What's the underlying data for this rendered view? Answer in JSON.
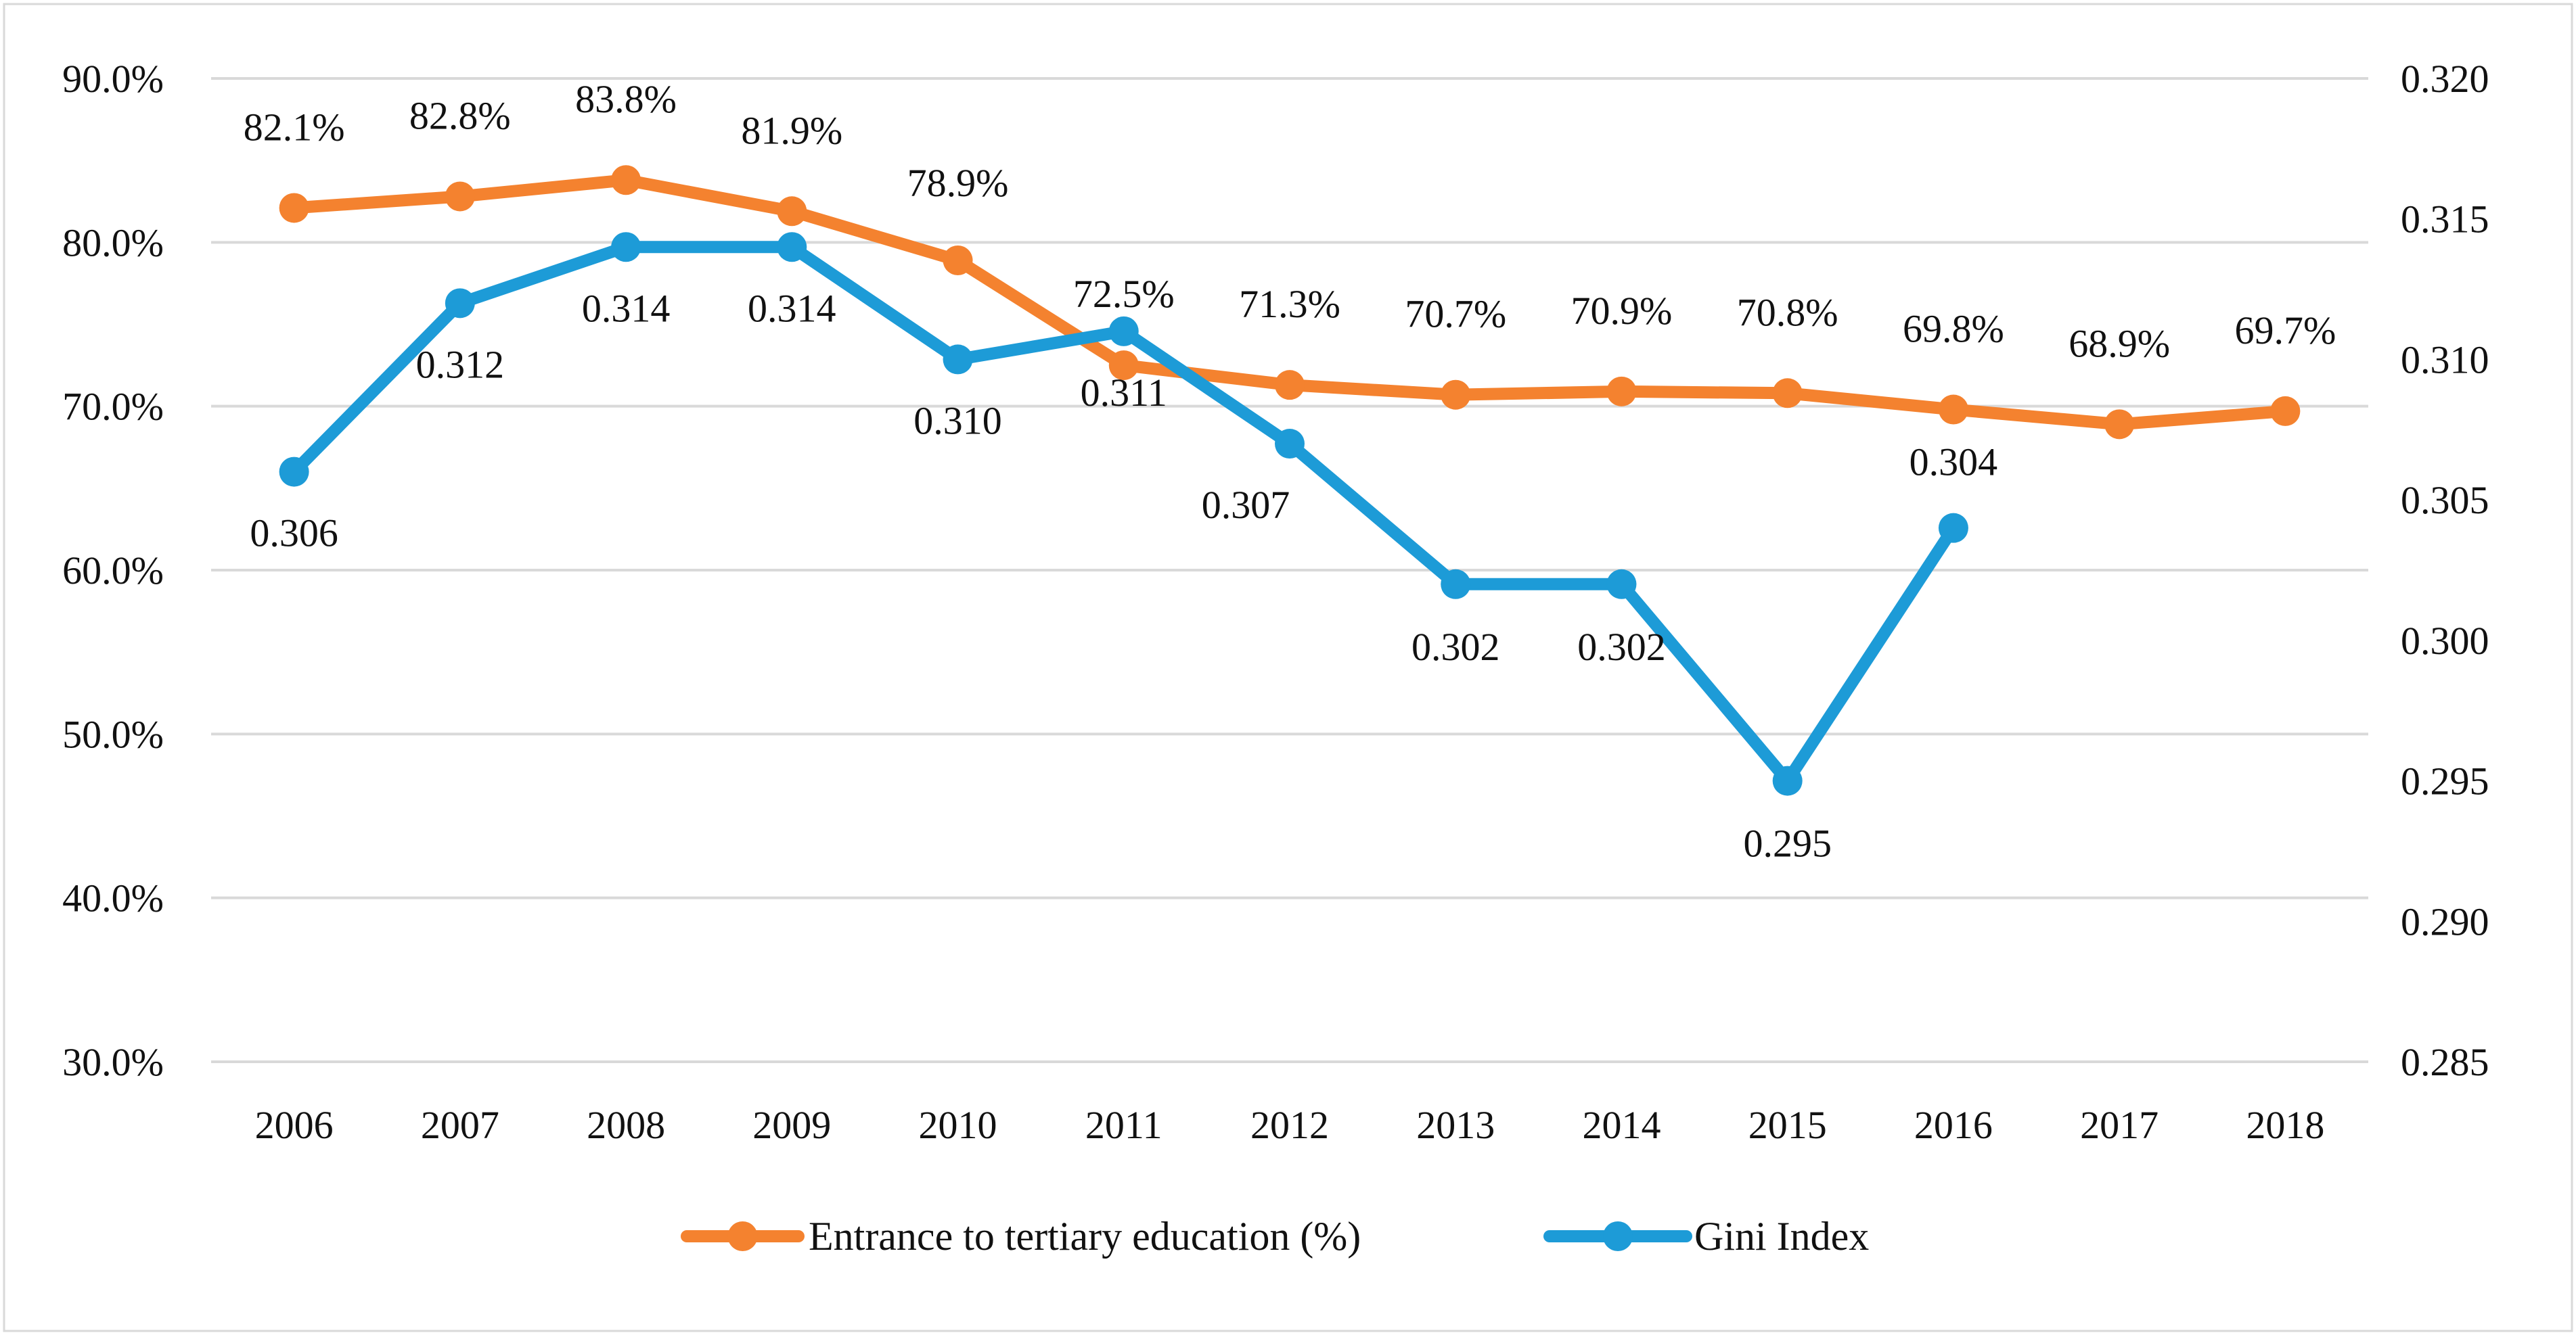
{
  "chart_data": {
    "type": "line",
    "categories": [
      "2006",
      "2007",
      "2008",
      "2009",
      "2010",
      "2011",
      "2012",
      "2013",
      "2014",
      "2015",
      "2016",
      "2017",
      "2018"
    ],
    "y_left": {
      "range": [
        30.0,
        90.0
      ],
      "ticks": [
        30.0,
        40.0,
        50.0,
        60.0,
        70.0,
        80.0,
        90.0
      ],
      "tick_labels": [
        "30.0%",
        "40.0%",
        "50.0%",
        "60.0%",
        "70.0%",
        "80.0%",
        "90.0%"
      ]
    },
    "y_right": {
      "range": [
        0.285,
        0.32
      ],
      "ticks": [
        0.285,
        0.29,
        0.295,
        0.3,
        0.305,
        0.31,
        0.315,
        0.32
      ],
      "tick_labels": [
        "0.285",
        "0.290",
        "0.295",
        "0.300",
        "0.305",
        "0.310",
        "0.315",
        "0.320"
      ]
    },
    "grid": true,
    "legend_position": "bottom",
    "series": [
      {
        "name": "Entrance to tertiary education (%)",
        "axis": "left",
        "color": "#F4822F",
        "values": [
          82.1,
          82.8,
          83.8,
          81.9,
          78.9,
          72.5,
          71.3,
          70.7,
          70.9,
          70.8,
          69.8,
          68.9,
          69.7
        ],
        "labels": [
          "82.1%",
          "82.8%",
          "83.8%",
          "81.9%",
          "78.9%",
          "72.5%",
          "71.3%",
          "70.7%",
          "70.9%",
          "70.8%",
          "69.8%",
          "68.9%",
          "69.7%"
        ]
      },
      {
        "name": "Gini Index",
        "axis": "right",
        "color": "#1D9BD7",
        "values": [
          0.306,
          0.312,
          0.314,
          0.314,
          0.31,
          0.311,
          0.307,
          0.302,
          0.302,
          0.295,
          0.304,
          null,
          null
        ],
        "labels": [
          "0.306",
          "0.312",
          "0.314",
          "0.314",
          "0.310",
          "0.311",
          "0.307",
          "0.302",
          "0.302",
          "0.295",
          "0.304",
          "",
          ""
        ]
      }
    ]
  }
}
